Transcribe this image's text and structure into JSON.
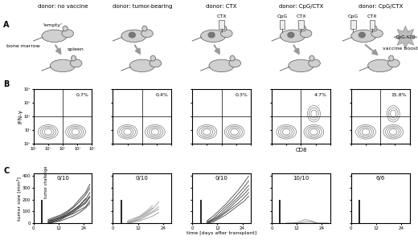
{
  "panel_labels": [
    "A",
    "B",
    "C"
  ],
  "columns": [
    "donor: no vaccine",
    "donor: tumor-bearing",
    "donor: CTX",
    "donor: CpG/CTX",
    "donor: CpG/CTX"
  ],
  "panel_a": {
    "bone_marrow": "bone marrow",
    "spleen": "spleen",
    "empty": "'empty'",
    "ctx": "CTX",
    "cpg": "CpG",
    "vaccine_boost": "vaccine boost",
    "cpg_a20": "CpG-A20"
  },
  "panel_b": {
    "xlabel": "CD8",
    "ylabel": "IFN-γ",
    "log": true,
    "xlim": [
      1,
      10000
    ],
    "ylim": [
      1,
      10000
    ],
    "xticks": [
      {
        "value": 1,
        "label": "10⁰"
      },
      {
        "value": 10,
        "label": "10¹"
      },
      {
        "value": 100,
        "label": "10²"
      },
      {
        "value": 1000,
        "label": "10³"
      },
      {
        "value": 10000,
        "label": "10⁴"
      }
    ],
    "yticks": [
      {
        "value": 1,
        "label": "10⁰"
      },
      {
        "value": 10,
        "label": "10¹"
      },
      {
        "value": 100,
        "label": "10²"
      },
      {
        "value": 1000,
        "label": "10³"
      },
      {
        "value": 10000,
        "label": "10⁴"
      }
    ],
    "values": [
      0.7,
      0.4,
      0.3,
      4.7,
      15.8
    ],
    "value_labels": [
      "0.7%",
      "0.4%",
      "0.3%",
      "4.7%",
      "15.8%"
    ]
  },
  "chart_data": [
    {
      "type": "line",
      "title": "0/10",
      "ylabel": "tumor size [mm³]",
      "x": [
        7,
        10,
        13,
        16,
        19,
        22,
        25,
        27
      ],
      "xlim": [
        0,
        28
      ],
      "xticks": [
        0,
        12,
        24
      ],
      "ylim": [
        0,
        420
      ],
      "yticks": [
        0,
        100,
        200,
        300,
        400
      ],
      "events": [
        {
          "x": 4,
          "y": 200
        }
      ],
      "annotations": [
        {
          "text": "tumor challenge",
          "x": 5,
          "y": 210
        }
      ],
      "series": [
        {
          "color": "#333333",
          "values": [
            20,
            40,
            60,
            90,
            130,
            180,
            240,
            300
          ]
        },
        {
          "color": "#333333",
          "values": [
            10,
            30,
            50,
            80,
            110,
            150,
            200,
            260
          ]
        },
        {
          "color": "#333333",
          "values": [
            0,
            20,
            40,
            70,
            100,
            140,
            180,
            230
          ]
        },
        {
          "color": "#333333",
          "values": [
            30,
            50,
            70,
            100,
            140,
            200,
            260,
            330
          ]
        },
        {
          "color": "#333333",
          "values": [
            0,
            10,
            30,
            60,
            90,
            130,
            170,
            220
          ]
        },
        {
          "color": "#333333",
          "values": [
            20,
            30,
            50,
            70,
            110,
            150,
            210,
            null
          ]
        },
        {
          "color": "#333333",
          "values": [
            0,
            10,
            20,
            40,
            60,
            90,
            130,
            170
          ]
        },
        {
          "color": "#333333",
          "values": [
            10,
            20,
            40,
            60,
            80,
            110,
            140,
            190
          ]
        }
      ]
    },
    {
      "type": "line",
      "title": "0/10",
      "tick_labels": "x",
      "x": [
        7,
        10,
        13,
        16,
        19,
        22,
        25,
        27
      ],
      "xlim": [
        0,
        28
      ],
      "xticks": [
        0,
        12,
        24
      ],
      "ylim": [
        0,
        420
      ],
      "yticks": [
        0,
        100,
        200,
        300,
        400
      ],
      "events": [
        {
          "x": 4,
          "y": 200
        }
      ],
      "series": [
        {
          "color": "#999999",
          "values": [
            10,
            30,
            60,
            100,
            150,
            null,
            null,
            null
          ]
        },
        {
          "color": "#999999",
          "values": [
            0,
            20,
            50,
            80,
            120,
            180,
            null,
            null
          ]
        },
        {
          "color": "#999999",
          "values": [
            20,
            40,
            60,
            90,
            130,
            null,
            null,
            null
          ]
        },
        {
          "color": "#999999",
          "values": [
            0,
            10,
            40,
            70,
            100,
            140,
            null,
            null
          ]
        },
        {
          "color": "#999999",
          "values": [
            10,
            20,
            30,
            60,
            90,
            120,
            null,
            null
          ]
        },
        {
          "color": "#999999",
          "values": [
            0,
            10,
            20,
            40,
            60,
            90,
            null,
            null
          ]
        }
      ]
    },
    {
      "type": "line",
      "title": "0/10",
      "tick_labels": "x",
      "xlabel": "time [days after transplant]",
      "x": [
        7,
        10,
        13,
        16,
        19,
        22,
        25,
        27
      ],
      "xlim": [
        0,
        28
      ],
      "xticks": [
        0,
        12,
        24
      ],
      "ylim": [
        0,
        420
      ],
      "yticks": [
        0,
        100,
        200,
        300,
        400
      ],
      "events": [
        {
          "x": 4,
          "y": 200
        }
      ],
      "series": [
        {
          "color": "#444444",
          "values": [
            20,
            60,
            110,
            160,
            220,
            280,
            350,
            400
          ]
        },
        {
          "color": "#444444",
          "values": [
            10,
            40,
            90,
            140,
            190,
            250,
            310,
            360
          ]
        },
        {
          "color": "#444444",
          "values": [
            0,
            30,
            70,
            120,
            170,
            220,
            280,
            320
          ]
        },
        {
          "color": "#444444",
          "values": [
            10,
            30,
            60,
            100,
            150,
            200,
            250,
            290
          ]
        },
        {
          "color": "#444444",
          "values": [
            0,
            20,
            50,
            90,
            130,
            170,
            220,
            260
          ]
        },
        {
          "color": "#444444",
          "values": [
            0,
            10,
            40,
            70,
            110,
            150,
            190,
            230
          ]
        }
      ]
    },
    {
      "type": "line",
      "title": "10/10",
      "tick_labels": "x",
      "x": [
        7,
        10,
        13,
        16,
        19,
        22,
        25,
        27
      ],
      "xlim": [
        0,
        28
      ],
      "xticks": [
        0,
        12,
        24
      ],
      "ylim": [
        0,
        420
      ],
      "yticks": [
        0,
        100,
        200,
        300,
        400
      ],
      "events": [
        {
          "x": 4,
          "y": 200
        }
      ],
      "series": [
        {
          "color": "#888888",
          "values": [
            0,
            0,
            10,
            30,
            20,
            0,
            0,
            0
          ]
        },
        {
          "color": "#888888",
          "values": [
            0,
            0,
            0,
            10,
            10,
            0,
            0,
            0
          ]
        }
      ]
    },
    {
      "type": "line",
      "title": "6/6",
      "tick_labels": "x",
      "x": [
        7,
        10,
        13,
        16,
        19,
        22,
        25,
        27
      ],
      "xlim": [
        0,
        28
      ],
      "xticks": [
        0,
        12,
        24
      ],
      "ylim": [
        0,
        420
      ],
      "yticks": [
        0,
        100,
        200,
        300,
        400
      ],
      "events": [
        {
          "x": 4,
          "y": 200
        }
      ],
      "series": []
    }
  ]
}
